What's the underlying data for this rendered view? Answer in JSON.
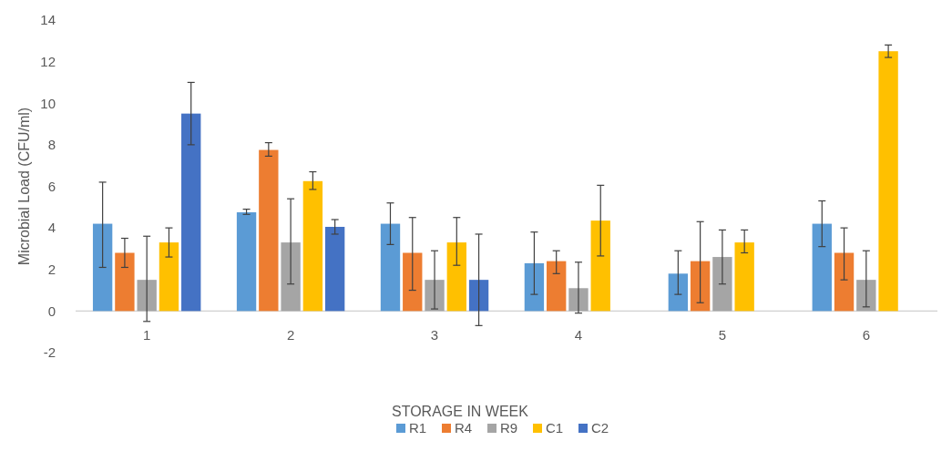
{
  "chart_data": {
    "type": "bar",
    "xlabel": "STORAGE IN WEEK",
    "ylabel": "Microbial Load (CFU/ml)",
    "categories": [
      "1",
      "2",
      "3",
      "4",
      "5",
      "6"
    ],
    "series": [
      {
        "name": "R1",
        "color": "#5b9bd5",
        "values": [
          4.2,
          4.75,
          4.2,
          2.3,
          1.8,
          4.2
        ],
        "errors": [
          [
            2.1,
            6.2
          ],
          [
            4.65,
            4.9
          ],
          [
            3.2,
            5.2
          ],
          [
            0.8,
            3.8
          ],
          [
            0.8,
            2.9
          ],
          [
            3.1,
            5.3
          ]
        ]
      },
      {
        "name": "R4",
        "color": "#ed7d31",
        "values": [
          2.8,
          7.75,
          2.8,
          2.4,
          2.4,
          2.8
        ],
        "errors": [
          [
            2.1,
            3.5
          ],
          [
            7.45,
            8.1
          ],
          [
            1.0,
            4.5
          ],
          [
            1.8,
            2.9
          ],
          [
            0.4,
            4.3
          ],
          [
            1.5,
            4.0
          ]
        ]
      },
      {
        "name": "R9",
        "color": "#a5a5a5",
        "values": [
          1.5,
          3.3,
          1.5,
          1.1,
          2.6,
          1.5
        ],
        "errors": [
          [
            -0.5,
            3.6
          ],
          [
            1.3,
            5.4
          ],
          [
            0.1,
            2.9
          ],
          [
            -0.1,
            2.35
          ],
          [
            1.3,
            3.9
          ],
          [
            0.2,
            2.9
          ]
        ]
      },
      {
        "name": "C1",
        "color": "#ffc000",
        "values": [
          3.3,
          6.25,
          3.3,
          4.35,
          3.3,
          12.5
        ],
        "errors": [
          [
            2.6,
            4.0
          ],
          [
            5.85,
            6.7
          ],
          [
            2.2,
            4.5
          ],
          [
            2.65,
            6.05
          ],
          [
            2.8,
            3.9
          ],
          [
            12.2,
            12.8
          ]
        ]
      },
      {
        "name": "C2",
        "color": "#4472c4",
        "values": [
          9.5,
          4.05,
          1.5,
          null,
          null,
          null
        ],
        "errors": [
          [
            8.0,
            11.0
          ],
          [
            3.7,
            4.4
          ],
          [
            -0.7,
            3.7
          ],
          null,
          null,
          null
        ]
      }
    ],
    "ylim": [
      -2,
      14
    ],
    "yticks": [
      -2,
      0,
      2,
      4,
      6,
      8,
      10,
      12,
      14
    ],
    "grid": false,
    "legend": "bottom"
  }
}
